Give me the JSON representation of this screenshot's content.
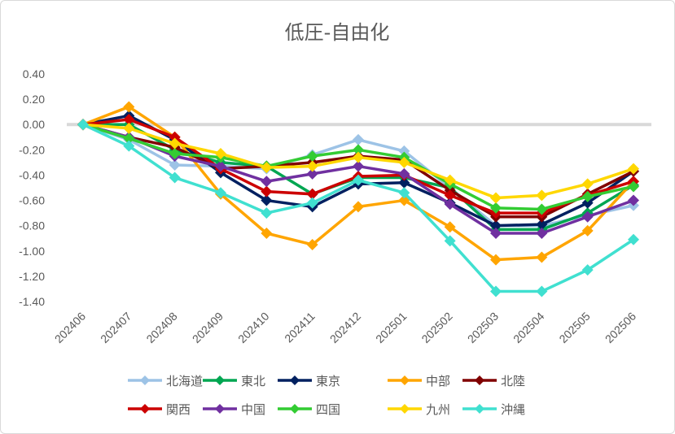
{
  "chart_data": {
    "type": "line",
    "title": "低圧-自由化",
    "xlabel": "",
    "ylabel": "",
    "ylim": [
      -1.4,
      0.4
    ],
    "ytick_step": 0.2,
    "y_tick_labels": [
      "0.40",
      "0.20",
      "0.00",
      "-0.20",
      "-0.40",
      "-0.60",
      "-0.80",
      "-1.00",
      "-1.20",
      "-1.40"
    ],
    "grid": false,
    "zero_line": true,
    "legend": "bottom",
    "categories": [
      "202406",
      "202407",
      "202408",
      "202409",
      "202410",
      "202411",
      "202412",
      "202501",
      "202502",
      "202503",
      "202504",
      "202505",
      "202506"
    ],
    "series": [
      {
        "name": "北海道",
        "color": "#9DC3E6",
        "values": [
          0.0,
          -0.12,
          -0.32,
          -0.33,
          -0.35,
          -0.24,
          -0.12,
          -0.21,
          -0.5,
          -0.8,
          -0.8,
          -0.72,
          -0.64
        ]
      },
      {
        "name": "東北",
        "color": "#00A651",
        "values": [
          0.0,
          0.0,
          -0.2,
          -0.3,
          -0.33,
          -0.55,
          -0.42,
          -0.42,
          -0.5,
          -0.83,
          -0.83,
          -0.7,
          -0.48
        ]
      },
      {
        "name": "東京",
        "color": "#002060",
        "values": [
          0.0,
          0.07,
          -0.12,
          -0.38,
          -0.6,
          -0.65,
          -0.47,
          -0.46,
          -0.62,
          -0.8,
          -0.79,
          -0.62,
          -0.37
        ]
      },
      {
        "name": "中部",
        "color": "#FFA500",
        "values": [
          0.0,
          0.14,
          -0.1,
          -0.55,
          -0.86,
          -0.95,
          -0.65,
          -0.6,
          -0.81,
          -1.07,
          -1.05,
          -0.84,
          -0.45
        ]
      },
      {
        "name": "北陸",
        "color": "#800000",
        "values": [
          0.0,
          -0.1,
          -0.18,
          -0.35,
          -0.33,
          -0.3,
          -0.25,
          -0.28,
          -0.52,
          -0.73,
          -0.73,
          -0.55,
          -0.37
        ]
      },
      {
        "name": "関西",
        "color": "#CC0000",
        "values": [
          0.0,
          0.04,
          -0.1,
          -0.35,
          -0.53,
          -0.55,
          -0.41,
          -0.4,
          -0.56,
          -0.7,
          -0.7,
          -0.56,
          -0.45
        ]
      },
      {
        "name": "中国",
        "color": "#7030A0",
        "values": [
          0.0,
          -0.1,
          -0.25,
          -0.33,
          -0.45,
          -0.39,
          -0.33,
          -0.39,
          -0.63,
          -0.86,
          -0.86,
          -0.73,
          -0.6
        ]
      },
      {
        "name": "四国",
        "color": "#33CC33",
        "values": [
          0.0,
          -0.11,
          -0.23,
          -0.26,
          -0.33,
          -0.25,
          -0.2,
          -0.26,
          -0.47,
          -0.66,
          -0.67,
          -0.57,
          -0.49
        ]
      },
      {
        "name": "九州",
        "color": "#FFD700",
        "values": [
          0.0,
          -0.03,
          -0.15,
          -0.23,
          -0.34,
          -0.33,
          -0.26,
          -0.3,
          -0.44,
          -0.58,
          -0.56,
          -0.47,
          -0.35
        ]
      },
      {
        "name": "沖縄",
        "color": "#40E0D0",
        "values": [
          0.0,
          -0.17,
          -0.42,
          -0.54,
          -0.7,
          -0.62,
          -0.44,
          -0.54,
          -0.92,
          -1.32,
          -1.32,
          -1.15,
          -0.91
        ]
      }
    ]
  }
}
